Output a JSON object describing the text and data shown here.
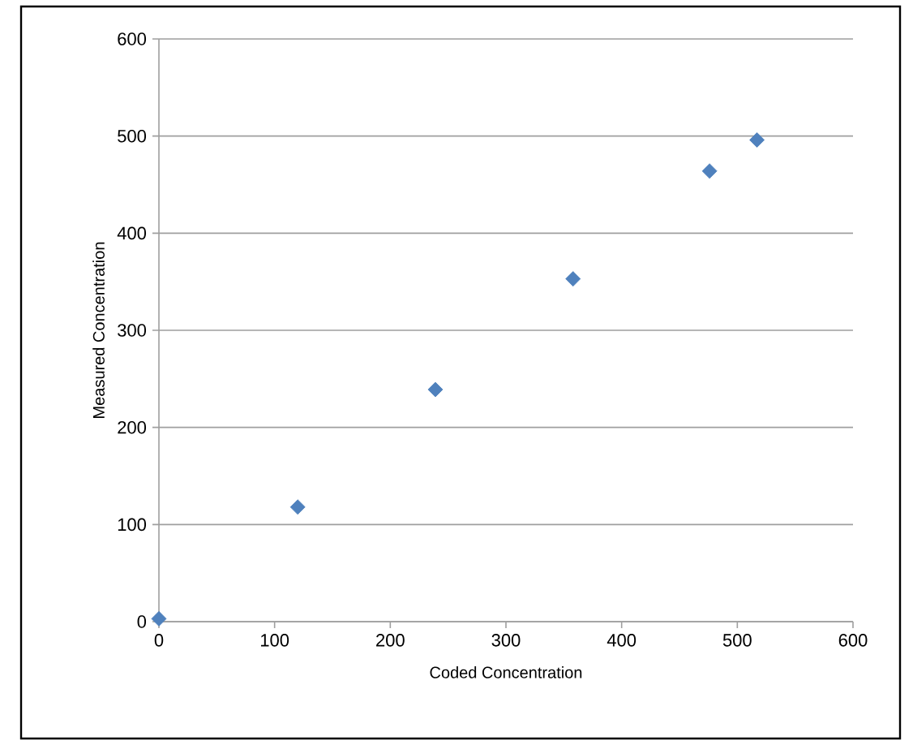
{
  "chart_data": {
    "type": "scatter",
    "xlabel": "Coded Concentration",
    "ylabel": "Measured Concentration",
    "x": [
      0,
      120,
      239,
      358,
      476,
      517
    ],
    "series": [
      {
        "color": "#4f81bd",
        "values": [
          3,
          118,
          239,
          353,
          464,
          496
        ]
      }
    ],
    "xlim": [
      0,
      600
    ],
    "ylim": [
      0,
      600
    ],
    "xticks": [
      0,
      100,
      200,
      300,
      400,
      500,
      600
    ],
    "yticks": [
      0,
      100,
      200,
      300,
      400,
      500,
      600
    ],
    "grid": "y",
    "marker": "diamond"
  }
}
